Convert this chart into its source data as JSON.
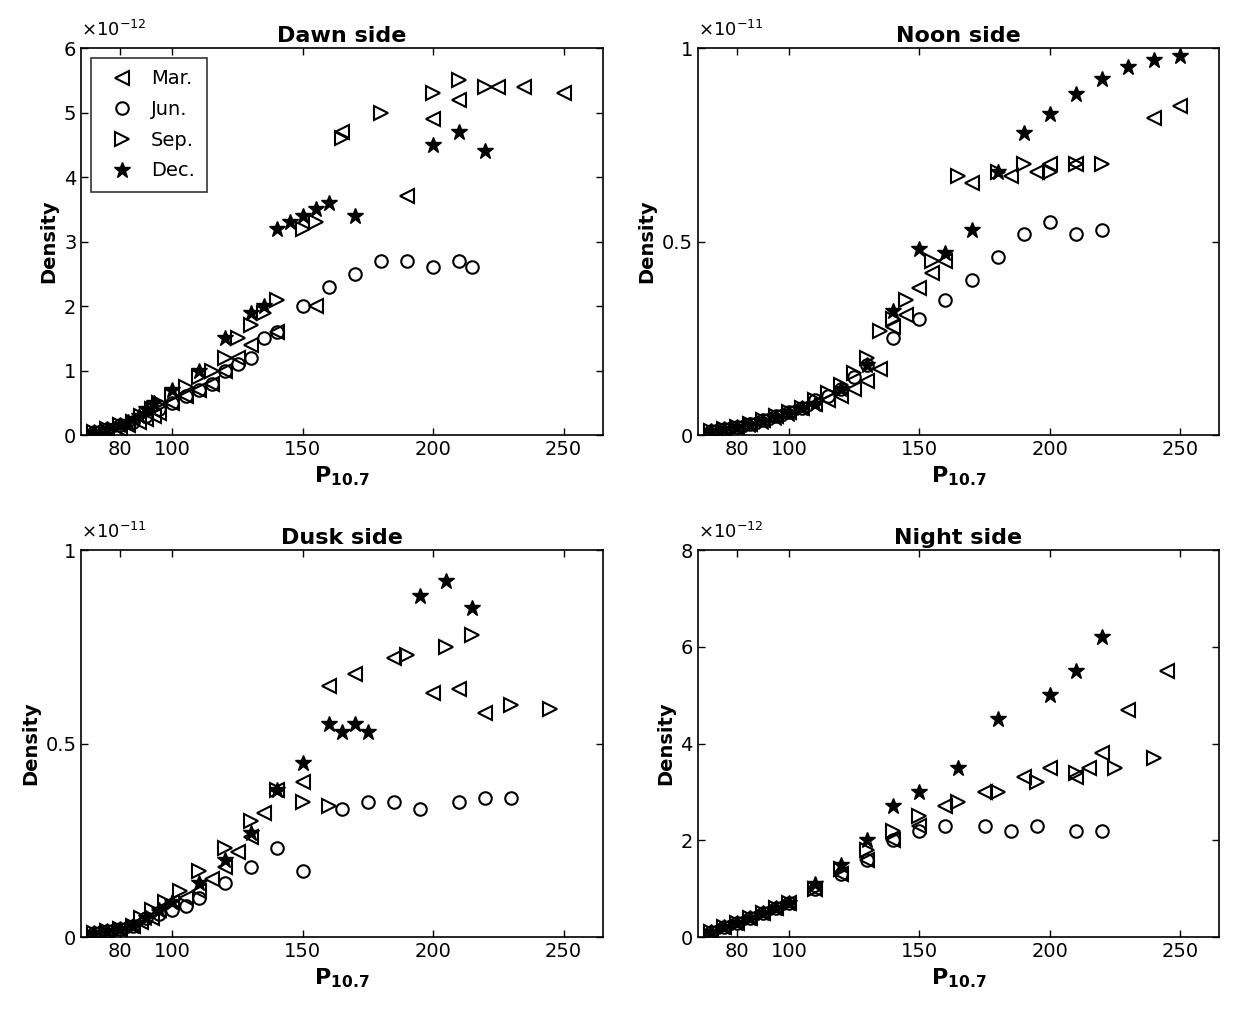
{
  "panels": [
    {
      "title": "Dawn side",
      "exponent": -12,
      "ylim": [
        0,
        6
      ],
      "yticks": [
        0,
        1,
        2,
        3,
        4,
        5,
        6
      ],
      "ytick_labels": [
        "0",
        "1",
        "2",
        "3",
        "4",
        "5",
        "6"
      ],
      "series": {
        "mar": {
          "x": [
            70,
            75,
            80,
            83,
            87,
            90,
            93,
            95,
            100,
            105,
            110,
            115,
            120,
            125,
            130,
            140,
            155,
            165,
            190,
            200,
            210,
            225,
            235,
            250
          ],
          "y": [
            0.05,
            0.08,
            0.1,
            0.15,
            0.2,
            0.25,
            0.3,
            0.35,
            0.5,
            0.6,
            0.7,
            0.8,
            1.0,
            1.2,
            1.4,
            1.6,
            2.0,
            4.7,
            3.7,
            4.9,
            5.2,
            5.4,
            5.4,
            5.3
          ]
        },
        "jun": {
          "x": [
            70,
            75,
            80,
            85,
            90,
            95,
            100,
            105,
            110,
            115,
            120,
            125,
            130,
            135,
            140,
            150,
            160,
            170,
            180,
            190,
            200,
            210,
            215
          ],
          "y": [
            0.05,
            0.1,
            0.15,
            0.2,
            0.3,
            0.4,
            0.5,
            0.6,
            0.7,
            0.8,
            1.0,
            1.1,
            1.2,
            1.5,
            1.6,
            2.0,
            2.3,
            2.5,
            2.7,
            2.7,
            2.6,
            2.7,
            2.6
          ]
        },
        "sep": {
          "x": [
            70,
            75,
            80,
            85,
            88,
            92,
            95,
            100,
            105,
            110,
            115,
            120,
            125,
            130,
            135,
            140,
            150,
            155,
            165,
            180,
            200,
            210,
            220
          ],
          "y": [
            0.05,
            0.1,
            0.15,
            0.2,
            0.3,
            0.4,
            0.5,
            0.6,
            0.75,
            0.9,
            1.0,
            1.2,
            1.5,
            1.7,
            1.9,
            2.1,
            3.2,
            3.3,
            4.6,
            5.0,
            5.3,
            5.5,
            5.4
          ]
        },
        "dec": {
          "x": [
            70,
            75,
            80,
            83,
            87,
            90,
            93,
            100,
            110,
            120,
            130,
            135,
            140,
            145,
            150,
            155,
            160,
            170,
            200,
            210,
            220
          ],
          "y": [
            0.05,
            0.1,
            0.15,
            0.2,
            0.3,
            0.4,
            0.5,
            0.7,
            1.0,
            1.5,
            1.9,
            2.0,
            3.2,
            3.3,
            3.4,
            3.5,
            3.6,
            3.4,
            4.5,
            4.7,
            4.4
          ]
        }
      }
    },
    {
      "title": "Noon side",
      "exponent": -11,
      "ylim": [
        0,
        1.0
      ],
      "yticks": [
        0,
        0.5,
        1.0
      ],
      "ytick_labels": [
        "0",
        "0.5",
        "1"
      ],
      "series": {
        "mar": {
          "x": [
            70,
            75,
            80,
            85,
            90,
            95,
            100,
            105,
            110,
            115,
            120,
            125,
            130,
            135,
            140,
            145,
            150,
            155,
            160,
            170,
            185,
            195,
            200,
            210,
            240,
            250
          ],
          "y": [
            0.01,
            0.015,
            0.02,
            0.03,
            0.04,
            0.05,
            0.06,
            0.07,
            0.08,
            0.09,
            0.1,
            0.12,
            0.14,
            0.17,
            0.28,
            0.31,
            0.38,
            0.42,
            0.45,
            0.65,
            0.67,
            0.68,
            0.7,
            0.7,
            0.82,
            0.85
          ]
        },
        "jun": {
          "x": [
            70,
            75,
            80,
            85,
            90,
            95,
            100,
            105,
            110,
            115,
            120,
            125,
            130,
            140,
            150,
            160,
            170,
            180,
            190,
            200,
            210,
            220
          ],
          "y": [
            0.01,
            0.015,
            0.02,
            0.03,
            0.04,
            0.05,
            0.06,
            0.07,
            0.09,
            0.1,
            0.12,
            0.15,
            0.18,
            0.25,
            0.3,
            0.35,
            0.4,
            0.46,
            0.52,
            0.55,
            0.52,
            0.53
          ]
        },
        "sep": {
          "x": [
            70,
            75,
            80,
            85,
            90,
            95,
            100,
            105,
            110,
            115,
            120,
            125,
            130,
            135,
            140,
            145,
            155,
            165,
            180,
            190,
            200,
            210,
            220
          ],
          "y": [
            0.01,
            0.015,
            0.02,
            0.03,
            0.04,
            0.05,
            0.06,
            0.07,
            0.09,
            0.11,
            0.13,
            0.16,
            0.2,
            0.27,
            0.3,
            0.35,
            0.45,
            0.67,
            0.68,
            0.7,
            0.68,
            0.7,
            0.7
          ]
        },
        "dec": {
          "x": [
            70,
            75,
            80,
            85,
            90,
            95,
            100,
            105,
            110,
            120,
            130,
            140,
            150,
            160,
            170,
            180,
            190,
            200,
            210,
            220,
            230,
            240,
            250
          ],
          "y": [
            0.01,
            0.015,
            0.02,
            0.025,
            0.035,
            0.045,
            0.055,
            0.07,
            0.08,
            0.12,
            0.18,
            0.32,
            0.48,
            0.47,
            0.53,
            0.68,
            0.78,
            0.83,
            0.88,
            0.92,
            0.95,
            0.97,
            0.98
          ]
        }
      }
    },
    {
      "title": "Dusk side",
      "exponent": -11,
      "ylim": [
        0,
        1.0
      ],
      "yticks": [
        0,
        0.5,
        1.0
      ],
      "ytick_labels": [
        "0",
        "0.5",
        "1"
      ],
      "series": {
        "mar": {
          "x": [
            70,
            75,
            80,
            85,
            88,
            92,
            95,
            100,
            105,
            110,
            115,
            120,
            125,
            130,
            135,
            140,
            150,
            160,
            170,
            185,
            200,
            210,
            220
          ],
          "y": [
            0.01,
            0.015,
            0.02,
            0.03,
            0.04,
            0.05,
            0.07,
            0.09,
            0.1,
            0.12,
            0.15,
            0.18,
            0.22,
            0.26,
            0.32,
            0.38,
            0.4,
            0.65,
            0.68,
            0.72,
            0.63,
            0.64,
            0.58
          ]
        },
        "jun": {
          "x": [
            70,
            75,
            80,
            85,
            90,
            95,
            100,
            105,
            110,
            120,
            130,
            140,
            150,
            165,
            175,
            185,
            195,
            210,
            220,
            230
          ],
          "y": [
            0.01,
            0.015,
            0.02,
            0.03,
            0.05,
            0.06,
            0.07,
            0.08,
            0.1,
            0.14,
            0.18,
            0.23,
            0.17,
            0.33,
            0.35,
            0.35,
            0.33,
            0.35,
            0.36,
            0.36
          ]
        },
        "sep": {
          "x": [
            70,
            75,
            80,
            85,
            88,
            92,
            97,
            103,
            110,
            120,
            130,
            140,
            150,
            160,
            190,
            205,
            215,
            230,
            245
          ],
          "y": [
            0.01,
            0.015,
            0.02,
            0.03,
            0.05,
            0.07,
            0.09,
            0.12,
            0.17,
            0.23,
            0.3,
            0.38,
            0.35,
            0.34,
            0.73,
            0.75,
            0.78,
            0.6,
            0.59
          ]
        },
        "dec": {
          "x": [
            70,
            75,
            80,
            85,
            90,
            95,
            100,
            110,
            120,
            130,
            140,
            150,
            160,
            165,
            170,
            175,
            195,
            205,
            215
          ],
          "y": [
            0.01,
            0.015,
            0.02,
            0.03,
            0.05,
            0.07,
            0.09,
            0.14,
            0.2,
            0.27,
            0.38,
            0.45,
            0.55,
            0.53,
            0.55,
            0.53,
            0.88,
            0.92,
            0.85
          ]
        }
      }
    },
    {
      "title": "Night side",
      "exponent": -12,
      "ylim": [
        0,
        8
      ],
      "yticks": [
        0,
        2,
        4,
        6,
        8
      ],
      "ytick_labels": [
        "0",
        "2",
        "4",
        "6",
        "8"
      ],
      "series": {
        "mar": {
          "x": [
            70,
            75,
            80,
            85,
            90,
            95,
            100,
            110,
            120,
            130,
            140,
            150,
            160,
            175,
            190,
            200,
            210,
            215,
            220,
            230,
            245
          ],
          "y": [
            0.1,
            0.2,
            0.3,
            0.4,
            0.5,
            0.6,
            0.7,
            1.0,
            1.3,
            1.6,
            2.0,
            2.3,
            2.7,
            3.0,
            3.3,
            3.5,
            3.3,
            3.5,
            3.8,
            4.7,
            5.5
          ]
        },
        "jun": {
          "x": [
            70,
            75,
            80,
            85,
            90,
            95,
            100,
            110,
            120,
            130,
            140,
            150,
            160,
            175,
            185,
            195,
            210,
            220
          ],
          "y": [
            0.1,
            0.2,
            0.3,
            0.4,
            0.5,
            0.6,
            0.7,
            1.0,
            1.3,
            1.6,
            2.0,
            2.2,
            2.3,
            2.3,
            2.2,
            2.3,
            2.2,
            2.2
          ]
        },
        "sep": {
          "x": [
            70,
            75,
            80,
            85,
            90,
            95,
            100,
            110,
            120,
            130,
            140,
            150,
            165,
            180,
            195,
            210,
            225,
            240
          ],
          "y": [
            0.1,
            0.2,
            0.3,
            0.4,
            0.5,
            0.6,
            0.7,
            1.0,
            1.4,
            1.8,
            2.2,
            2.5,
            2.8,
            3.0,
            3.2,
            3.4,
            3.5,
            3.7
          ]
        },
        "dec": {
          "x": [
            70,
            75,
            80,
            85,
            90,
            95,
            100,
            110,
            120,
            130,
            140,
            150,
            165,
            180,
            200,
            210,
            220
          ],
          "y": [
            0.1,
            0.2,
            0.3,
            0.4,
            0.5,
            0.6,
            0.7,
            1.1,
            1.5,
            2.0,
            2.7,
            3.0,
            3.5,
            4.5,
            5.0,
            5.5,
            6.2
          ]
        }
      }
    }
  ],
  "xlim": [
    65,
    265
  ],
  "xticks": [
    80,
    100,
    150,
    200,
    250
  ],
  "ylabel": "Density",
  "marker_size_tri": 10,
  "marker_size_circ": 9,
  "marker_size_star": 12,
  "font_size": 14,
  "title_font_size": 16,
  "background": "#ffffff"
}
